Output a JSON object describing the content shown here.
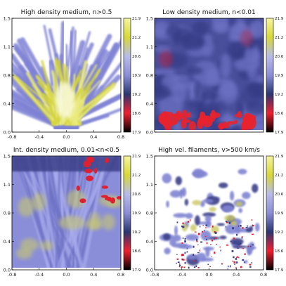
{
  "chart_data": [
    {
      "type": "heatmap",
      "title": "High density medium, n>0.5",
      "xlabel": "",
      "ylabel": "",
      "xlim": [
        -0.8,
        0.8
      ],
      "ylim": [
        0.0,
        1.5
      ],
      "xticks": [
        "-0.8",
        "-0.4",
        "0.0",
        "0.4",
        "0.8"
      ],
      "yticks": [
        "0.0",
        "0.4",
        "0.8",
        "1.1",
        "1.5"
      ],
      "colorbar": {
        "range": [
          17.9,
          21.9
        ],
        "ticks": [
          "21.9",
          "21.2",
          "20.6",
          "19.9",
          "19.2",
          "18.6",
          "17.9"
        ]
      },
      "structure": "conical-outflow"
    },
    {
      "type": "heatmap",
      "title": "Low density medium, n<0.01",
      "xlabel": "",
      "ylabel": "",
      "xlim": [
        -0.8,
        0.8
      ],
      "ylim": [
        0.0,
        1.5
      ],
      "xticks": [],
      "yticks": [
        "0.0",
        "0.4",
        "0.8",
        "1.1",
        "1.5"
      ],
      "colorbar": {
        "range": [
          17.9,
          21.9
        ],
        "ticks": [
          "21.9",
          "21.2",
          "20.6",
          "19.9",
          "19.2",
          "18.6",
          "17.9"
        ]
      },
      "structure": "filled-box"
    },
    {
      "type": "heatmap",
      "title": "Int. density medium, 0.01<n<0.5",
      "xlabel": "",
      "ylabel": "",
      "xlim": [
        -0.8,
        0.8
      ],
      "ylim": [
        0.0,
        1.5
      ],
      "xticks": [
        "-0.8",
        "-0.4",
        "0.0",
        "0.4",
        "0.8"
      ],
      "yticks": [
        "0.0",
        "0.4",
        "0.8",
        "1.1",
        "1.5"
      ],
      "colorbar": {
        "range": [
          17.9,
          21.9
        ],
        "ticks": [
          "21.9",
          "21.2",
          "20.6",
          "19.9",
          "19.2",
          "18.6",
          "17.9"
        ]
      },
      "structure": "filamentary-box"
    },
    {
      "type": "heatmap",
      "title": "High vel. filaments, v>500 km/s",
      "xlabel": "",
      "ylabel": "",
      "xlim": [
        -0.8,
        0.8
      ],
      "ylim": [
        0.0,
        1.5
      ],
      "xticks": [
        "-0.8",
        "-0.4",
        "0.0",
        "0.4",
        "0.8"
      ],
      "yticks": [
        "0.0",
        "0.4",
        "0.8",
        "1.1",
        "1.5"
      ],
      "colorbar": {
        "range": [
          17.9,
          21.9
        ],
        "ticks": [
          "21.9",
          "21.2",
          "20.6",
          "19.9",
          "19.2",
          "18.6",
          "17.9"
        ]
      },
      "structure": "sparse-filaments"
    }
  ],
  "colors": {
    "colorbar_stops": [
      "#000000",
      "#f02030",
      "#2a3670",
      "#8b8ed6",
      "#b8bce8",
      "#d8d83a",
      "#f5f5a0"
    ],
    "axis": "#000000"
  }
}
